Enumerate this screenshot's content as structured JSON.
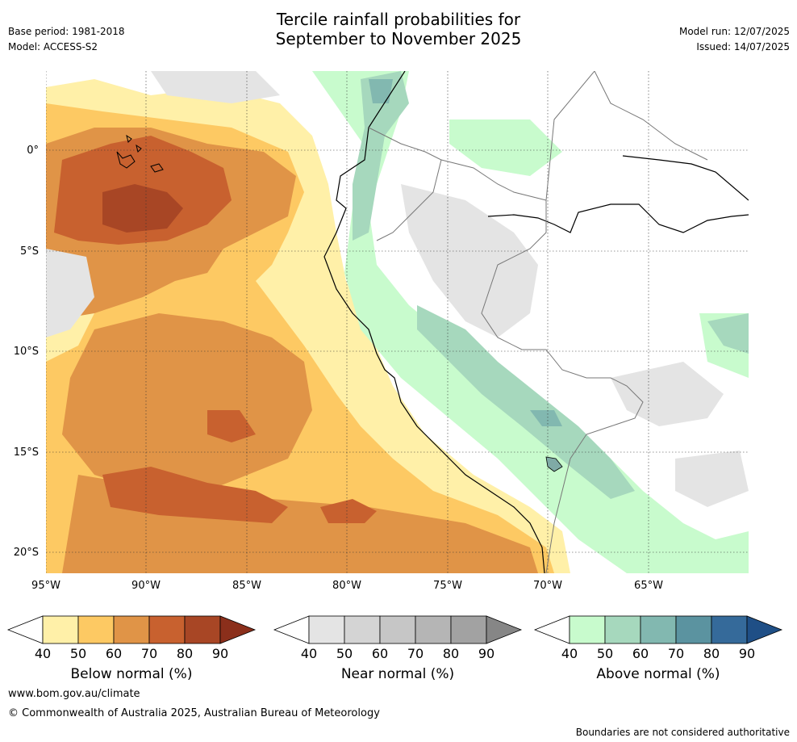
{
  "header": {
    "title_line1": "Tercile rainfall probabilities for",
    "title_line2": "September to November 2025",
    "base_period": "Base period: 1981-2018",
    "model": "Model: ACCESS-S2",
    "model_run": "Model run: 12/07/2025",
    "issued": "Issued: 14/07/2025"
  },
  "map": {
    "lat_labels": [
      "0°",
      "5°S",
      "10°S",
      "15°S",
      "20°S"
    ],
    "lon_labels": [
      "95°W",
      "90°W",
      "85°W",
      "80°W",
      "75°W",
      "70°W",
      "65°W"
    ]
  },
  "colorbars": {
    "below": {
      "label": "Below normal (%)",
      "ticks": [
        "40",
        "50",
        "60",
        "70",
        "80",
        "90"
      ],
      "colors": [
        "#fff0a8",
        "#fdc963",
        "#e09447",
        "#c8612f",
        "#a84625",
        "#8b2f1b"
      ]
    },
    "near": {
      "label": "Near normal (%)",
      "ticks": [
        "40",
        "50",
        "60",
        "70",
        "80",
        "90"
      ],
      "colors": [
        "#e4e4e4",
        "#d4d4d4",
        "#c6c6c6",
        "#b5b5b5",
        "#a2a2a2",
        "#868686"
      ]
    },
    "above": {
      "label": "Above normal (%)",
      "ticks": [
        "40",
        "50",
        "60",
        "70",
        "80",
        "90"
      ],
      "colors": [
        "#c8fbcd",
        "#a6d8bd",
        "#82b8b0",
        "#5b93a0",
        "#356a9a",
        "#1f4f86"
      ]
    }
  },
  "footer": {
    "website": "www.bom.gov.au/climate",
    "copyright": "© Commonwealth of Australia 2025, Australian Bureau of Meteorology",
    "disclaimer": "Boundaries are not considered authoritative"
  }
}
